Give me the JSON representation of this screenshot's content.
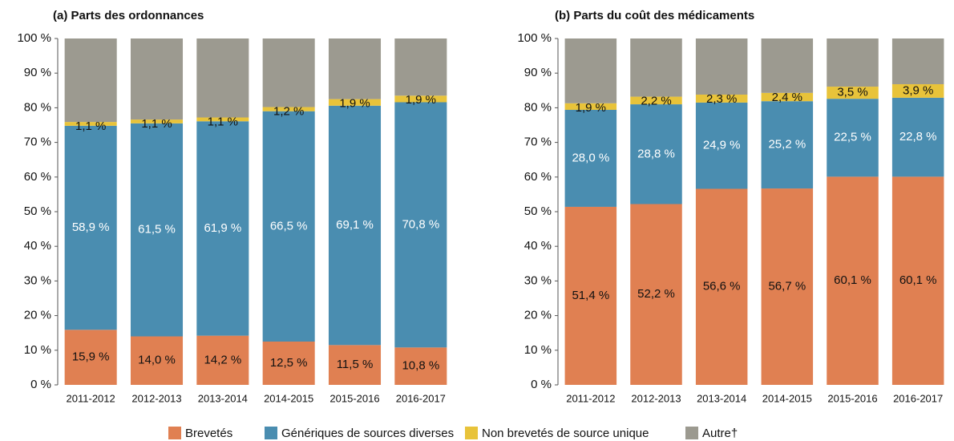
{
  "chart_data": [
    {
      "type": "stacked-bar",
      "title": "(a) Parts des ordonnances",
      "categories": [
        "2011-2012",
        "2012-2013",
        "2013-2014",
        "2014-2015",
        "2015-2016",
        "2016-2017"
      ],
      "ylim": [
        0,
        100
      ],
      "yticks": [
        {
          "value": 0,
          "label": "0 %"
        },
        {
          "value": 10,
          "label": "10 %"
        },
        {
          "value": 20,
          "label": "20 %"
        },
        {
          "value": 30,
          "label": "30 %"
        },
        {
          "value": 40,
          "label": "40 %"
        },
        {
          "value": 50,
          "label": "50 %"
        },
        {
          "value": 60,
          "label": "60 %"
        },
        {
          "value": 70,
          "label": "70 %"
        },
        {
          "value": 80,
          "label": "80 %"
        },
        {
          "value": 90,
          "label": "90 %"
        },
        {
          "value": 100,
          "label": "100 %"
        }
      ],
      "series": [
        {
          "name": "Brevetés",
          "color": "#e08052",
          "label_color": "#111",
          "values": [
            15.9,
            14.0,
            14.2,
            12.5,
            11.5,
            10.8
          ],
          "value_labels": [
            "15,9 %",
            "14,0 %",
            "14,2 %",
            "12,5 %",
            "11,5 %",
            "10,8 %"
          ]
        },
        {
          "name": "Génériques de sources diverses",
          "color": "#4a8db0",
          "label_color": "#fff",
          "values": [
            58.9,
            61.5,
            61.9,
            66.5,
            69.1,
            70.8
          ],
          "value_labels": [
            "58,9 %",
            "61,5 %",
            "61,9 %",
            "66,5 %",
            "69,1 %",
            "70,8 %"
          ]
        },
        {
          "name": "Non brevetés de source unique",
          "color": "#e8c33a",
          "label_color": "#111",
          "values": [
            1.1,
            1.1,
            1.1,
            1.2,
            1.9,
            1.9
          ],
          "value_labels": [
            "1,1 %",
            "1,1 %",
            "1,1 %",
            "1,2 %",
            "1,9 %",
            "1,9 %"
          ]
        },
        {
          "name": "Autre†",
          "color": "#9c9a90",
          "values": [
            24.1,
            23.4,
            22.8,
            19.8,
            17.5,
            16.5
          ]
        }
      ]
    },
    {
      "type": "stacked-bar",
      "title": "(b) Parts du coût des médicaments",
      "categories": [
        "2011-2012",
        "2012-2013",
        "2013-2014",
        "2014-2015",
        "2015-2016",
        "2016-2017"
      ],
      "ylim": [
        0,
        100
      ],
      "yticks": [
        {
          "value": 0,
          "label": "0 %"
        },
        {
          "value": 10,
          "label": "10 %"
        },
        {
          "value": 20,
          "label": "20 %"
        },
        {
          "value": 30,
          "label": "30 %"
        },
        {
          "value": 40,
          "label": "40 %"
        },
        {
          "value": 50,
          "label": "50 %"
        },
        {
          "value": 60,
          "label": "60 %"
        },
        {
          "value": 70,
          "label": "70 %"
        },
        {
          "value": 80,
          "label": "80 %"
        },
        {
          "value": 90,
          "label": "90 %"
        },
        {
          "value": 100,
          "label": "100 %"
        }
      ],
      "series": [
        {
          "color": "#e08052",
          "label_color": "#111",
          "values": [
            51.4,
            52.2,
            56.6,
            56.7,
            60.1,
            60.1
          ],
          "value_labels": [
            "51,4 %",
            "52,2 %",
            "56,6 %",
            "56,7 %",
            "60,1 %",
            "60,1 %"
          ]
        },
        {
          "color": "#4a8db0",
          "label_color": "#fff",
          "values": [
            28.0,
            28.8,
            24.9,
            25.2,
            22.5,
            22.8
          ],
          "value_labels": [
            "28,0 %",
            "28,8 %",
            "24,9 %",
            "25,2 %",
            "22,5 %",
            "22,8 %"
          ]
        },
        {
          "color": "#e8c33a",
          "label_color": "#111",
          "values": [
            1.9,
            2.2,
            2.3,
            2.4,
            3.5,
            3.9
          ],
          "value_labels": [
            "1,9 %",
            "2,2 %",
            "2,3 %",
            "2,4 %",
            "3,5 %",
            "3,9 %"
          ]
        },
        {
          "color": "#9c9a90",
          "values": [
            18.7,
            16.8,
            16.2,
            15.7,
            13.9,
            13.2
          ]
        }
      ]
    }
  ]
}
